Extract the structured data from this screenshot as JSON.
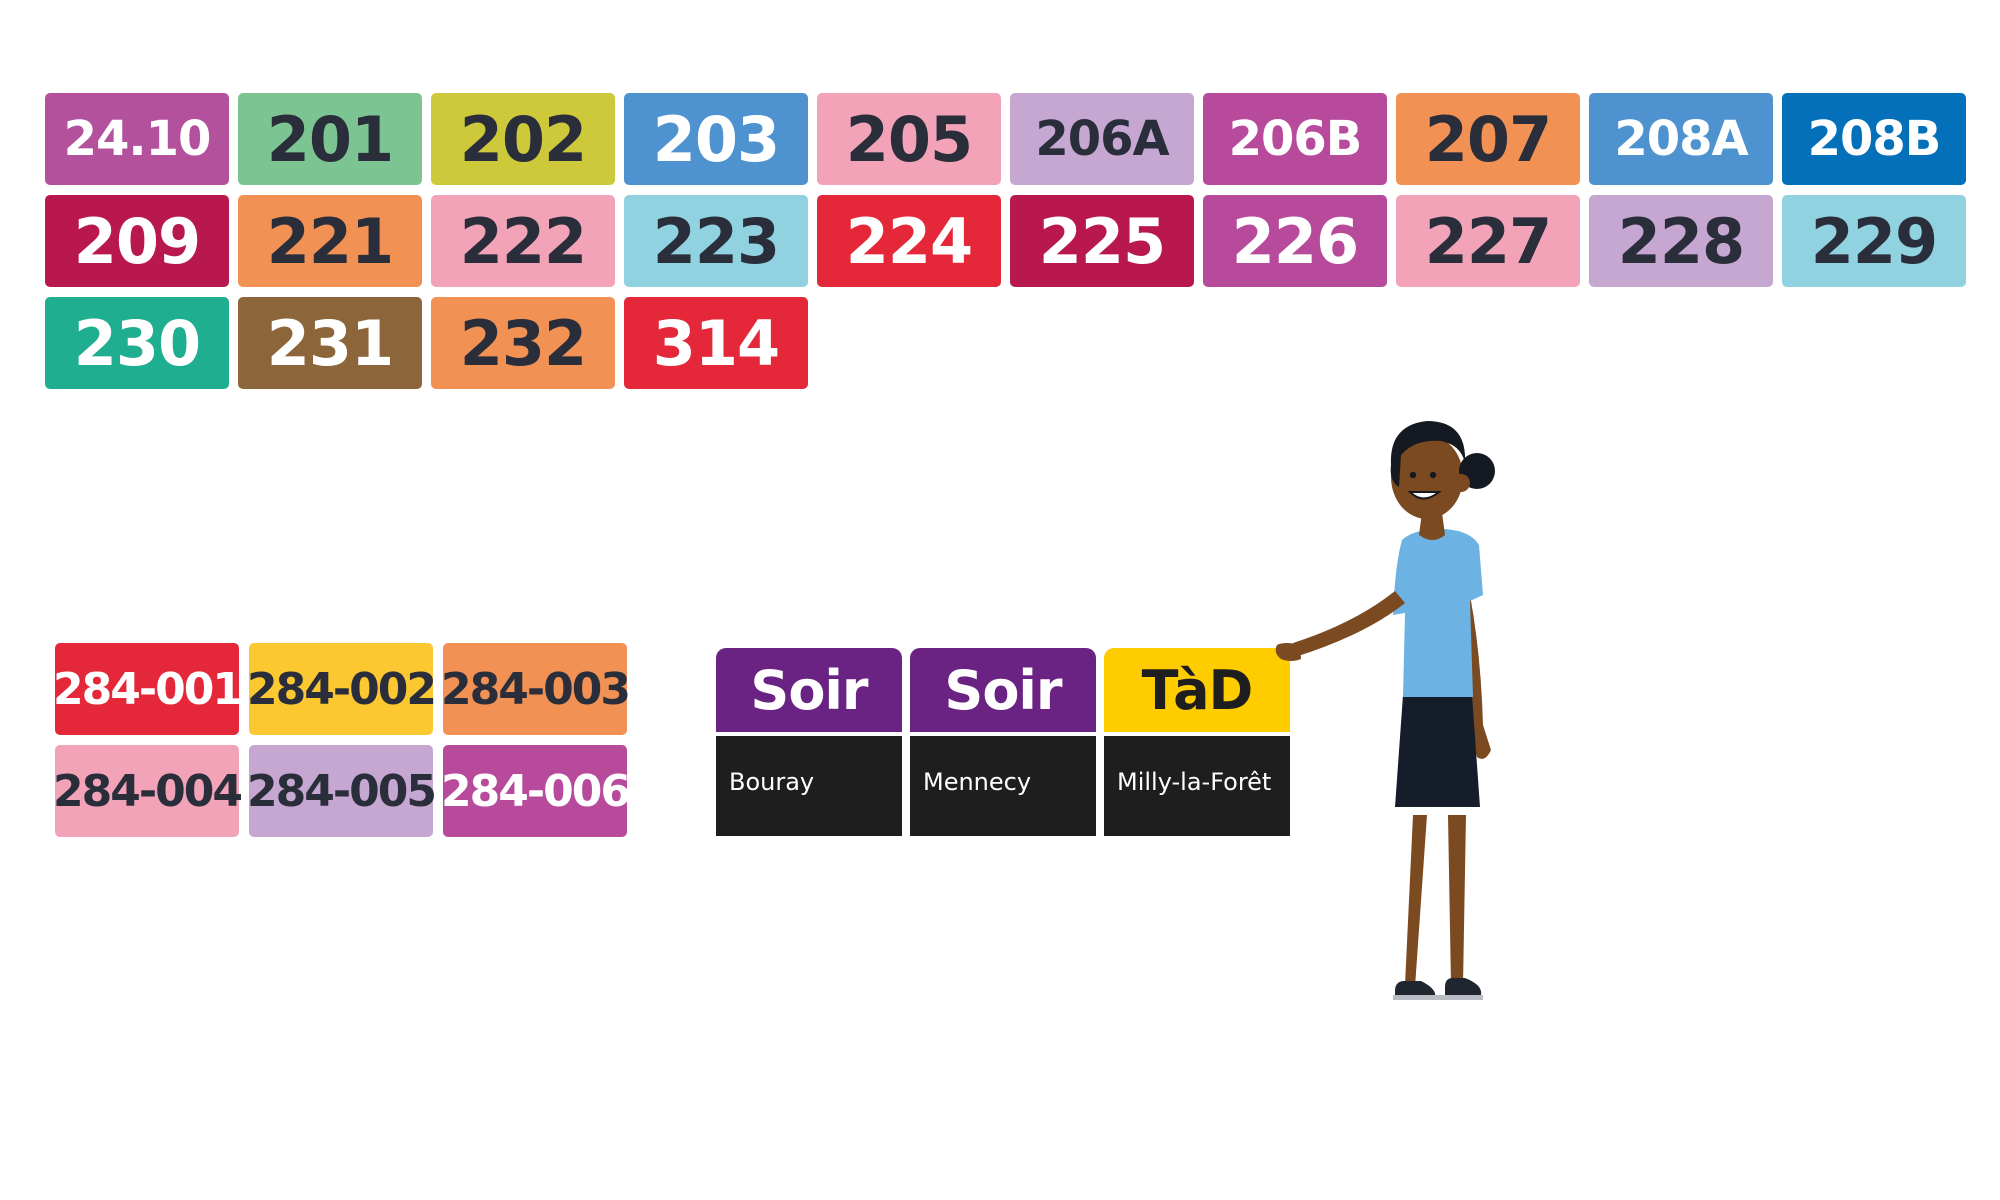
{
  "colors": {
    "text_dark": "#2a2d3a",
    "text_light": "#ffffff",
    "card_bottom": "#1e1e1e"
  },
  "lines": [
    {
      "label": "24.10",
      "bg": "#b3519d",
      "fg": "#ffffff"
    },
    {
      "label": "201",
      "bg": "#7cc593",
      "fg": "#2a2d3a"
    },
    {
      "label": "202",
      "bg": "#cdc93a",
      "fg": "#2a2d3a"
    },
    {
      "label": "203",
      "bg": "#4e93d0",
      "fg": "#ffffff"
    },
    {
      "label": "205",
      "bg": "#f3a3b8",
      "fg": "#2a2d3a"
    },
    {
      "label": "206A",
      "bg": "#c6a7d2",
      "fg": "#2a2d3a"
    },
    {
      "label": "206B",
      "bg": "#b74a9a",
      "fg": "#ffffff"
    },
    {
      "label": "207",
      "bg": "#f29154",
      "fg": "#2a2d3a"
    },
    {
      "label": "208A",
      "bg": "#4e93d0",
      "fg": "#ffffff"
    },
    {
      "label": "208B",
      "bg": "#0470b9",
      "fg": "#ffffff"
    },
    {
      "label": "209",
      "bg": "#b8184e",
      "fg": "#ffffff"
    },
    {
      "label": "221",
      "bg": "#f29154",
      "fg": "#2a2d3a"
    },
    {
      "label": "222",
      "bg": "#f3a3b8",
      "fg": "#2a2d3a"
    },
    {
      "label": "223",
      "bg": "#90d2df",
      "fg": "#2a2d3a"
    },
    {
      "label": "224",
      "bg": "#e4283a",
      "fg": "#ffffff"
    },
    {
      "label": "225",
      "bg": "#b8184e",
      "fg": "#ffffff"
    },
    {
      "label": "226",
      "bg": "#b74a9a",
      "fg": "#ffffff"
    },
    {
      "label": "227",
      "bg": "#f3a3b8",
      "fg": "#2a2d3a"
    },
    {
      "label": "228",
      "bg": "#c6a7d2",
      "fg": "#2a2d3a"
    },
    {
      "label": "229",
      "bg": "#90d2df",
      "fg": "#2a2d3a"
    },
    {
      "label": "230",
      "bg": "#1fae90",
      "fg": "#ffffff"
    },
    {
      "label": "231",
      "bg": "#8d653b",
      "fg": "#ffffff"
    },
    {
      "label": "232",
      "bg": "#f29154",
      "fg": "#2a2d3a"
    },
    {
      "label": "314",
      "bg": "#e4283a",
      "fg": "#ffffff"
    }
  ],
  "lines_284": [
    {
      "label": "284-001",
      "bg": "#e4283a",
      "fg": "#ffffff"
    },
    {
      "label": "284-002",
      "bg": "#fbc832",
      "fg": "#2a2d3a"
    },
    {
      "label": "284-003",
      "bg": "#f29154",
      "fg": "#2a2d3a"
    },
    {
      "label": "284-004",
      "bg": "#f3a3b8",
      "fg": "#2a2d3a"
    },
    {
      "label": "284-005",
      "bg": "#c6a7d2",
      "fg": "#2a2d3a"
    },
    {
      "label": "284-006",
      "bg": "#b74a9a",
      "fg": "#ffffff"
    }
  ],
  "services": [
    {
      "label": "Soir",
      "place": "Bouray",
      "bg": "#6a2383",
      "fg": "#ffffff"
    },
    {
      "label": "Soir",
      "place": "Mennecy",
      "bg": "#6a2383",
      "fg": "#ffffff"
    },
    {
      "label": "TàD",
      "place": "Milly-la-Forêt",
      "bg": "#ffcc00",
      "fg": "#1e1e1e"
    }
  ],
  "illustration": {
    "icon": "person-pointing-icon",
    "skin": "#7b4a21",
    "hair": "#151a22",
    "shirt": "#6cb3e3",
    "skirt": "#151d2b",
    "shoe": "#1f2630"
  }
}
